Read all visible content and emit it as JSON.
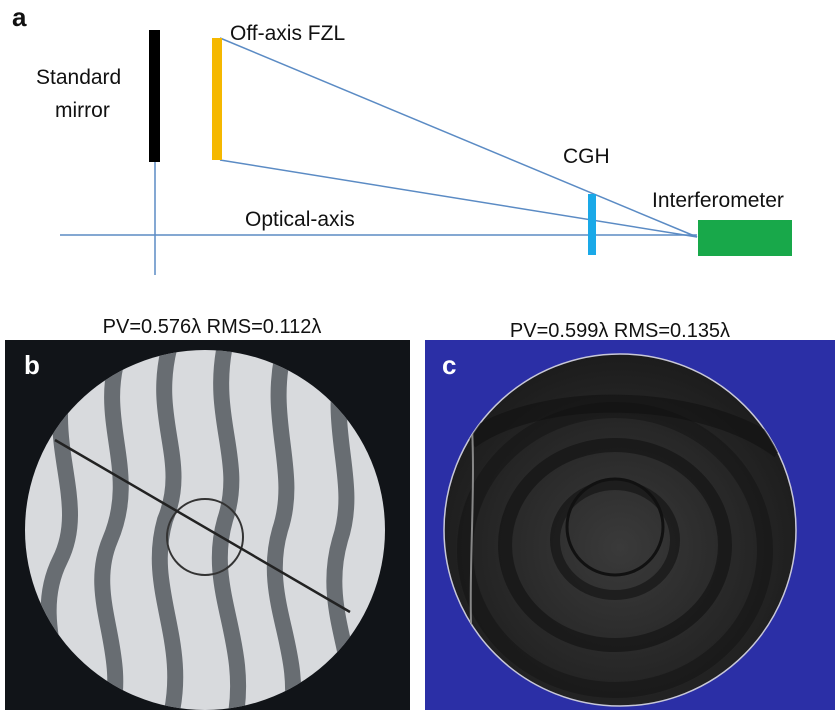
{
  "panel_labels": {
    "a": "a",
    "b": "b",
    "c": "c"
  },
  "diagram": {
    "standard_mirror": [
      "Standard",
      "mirror"
    ],
    "off_axis_fzl": "Off-axis FZL",
    "cgh": "CGH",
    "interferometer": "Interferometer",
    "optical_axis": "Optical-axis"
  },
  "results": [
    {
      "label": "PV=0.576λ  RMS=0.112λ"
    },
    {
      "label": "PV=0.599λ  RMS=0.135λ"
    }
  ]
}
